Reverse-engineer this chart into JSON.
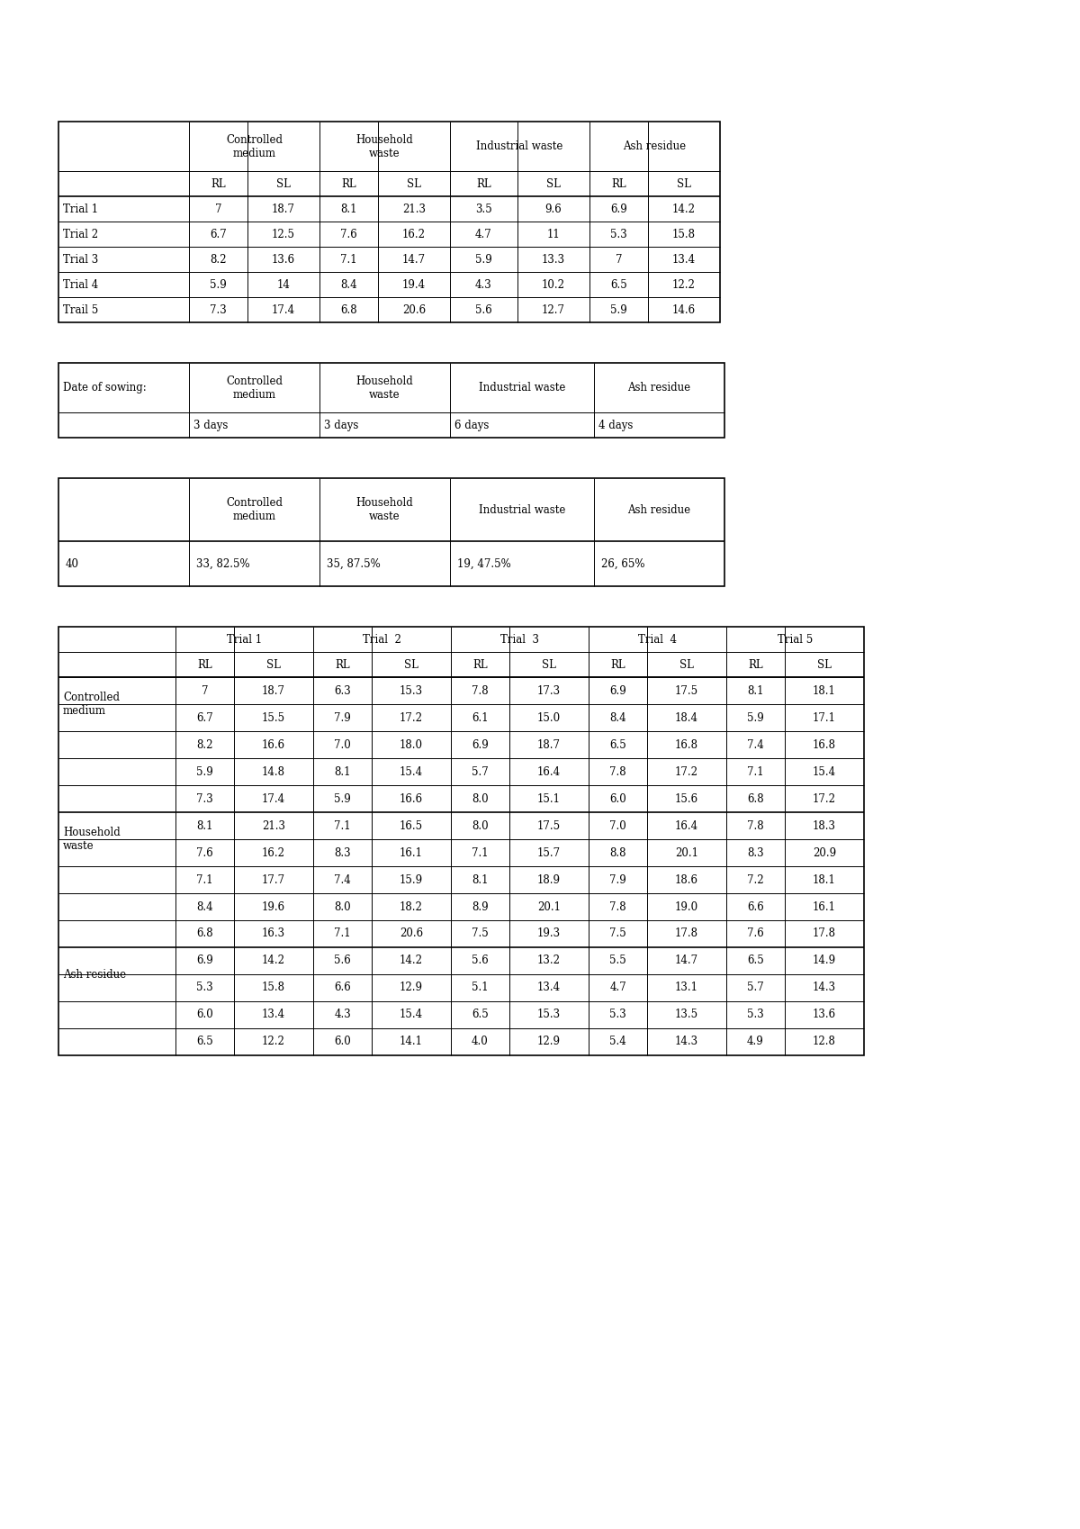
{
  "background_color": "#ffffff",
  "font_size": 8.5,
  "table1": {
    "rows": [
      [
        "Trial 1",
        "7",
        "18.7",
        "8.1",
        "21.3",
        "3.5",
        "9.6",
        "6.9",
        "14.2"
      ],
      [
        "Trial 2",
        "6.7",
        "12.5",
        "7.6",
        "16.2",
        "4.7",
        "11",
        "5.3",
        "15.8"
      ],
      [
        "Trial 3",
        "8.2",
        "13.6",
        "7.1",
        "14.7",
        "5.9",
        "13.3",
        "7",
        "13.4"
      ],
      [
        "Trial 4",
        "5.9",
        "14",
        "8.4",
        "19.4",
        "4.3",
        "10.2",
        "6.5",
        "12.2"
      ],
      [
        "Trail 5",
        "7.3",
        "17.4",
        "6.8",
        "20.6",
        "5.6",
        "12.7",
        "5.9",
        "14.6"
      ]
    ]
  },
  "table4": {
    "sections": [
      {
        "label": "Controlled\nmedium",
        "rows": [
          [
            "7",
            "18.7",
            "6.3",
            "15.3",
            "7.8",
            "17.3",
            "6.9",
            "17.5",
            "8.1",
            "18.1"
          ],
          [
            "6.7",
            "15.5",
            "7.9",
            "17.2",
            "6.1",
            "15.0",
            "8.4",
            "18.4",
            "5.9",
            "17.1"
          ],
          [
            "8.2",
            "16.6",
            "7.0",
            "18.0",
            "6.9",
            "18.7",
            "6.5",
            "16.8",
            "7.4",
            "16.8"
          ],
          [
            "5.9",
            "14.8",
            "8.1",
            "15.4",
            "5.7",
            "16.4",
            "7.8",
            "17.2",
            "7.1",
            "15.4"
          ],
          [
            "7.3",
            "17.4",
            "5.9",
            "16.6",
            "8.0",
            "15.1",
            "6.0",
            "15.6",
            "6.8",
            "17.2"
          ]
        ]
      },
      {
        "label": "Household\nwaste",
        "rows": [
          [
            "8.1",
            "21.3",
            "7.1",
            "16.5",
            "8.0",
            "17.5",
            "7.0",
            "16.4",
            "7.8",
            "18.3"
          ],
          [
            "7.6",
            "16.2",
            "8.3",
            "16.1",
            "7.1",
            "15.7",
            "8.8",
            "20.1",
            "8.3",
            "20.9"
          ],
          [
            "7.1",
            "17.7",
            "7.4",
            "15.9",
            "8.1",
            "18.9",
            "7.9",
            "18.6",
            "7.2",
            "18.1"
          ],
          [
            "8.4",
            "19.6",
            "8.0",
            "18.2",
            "8.9",
            "20.1",
            "7.8",
            "19.0",
            "6.6",
            "16.1"
          ],
          [
            "6.8",
            "16.3",
            "7.1",
            "20.6",
            "7.5",
            "19.3",
            "7.5",
            "17.8",
            "7.6",
            "17.8"
          ]
        ]
      },
      {
        "label": "Ash residue",
        "rows": [
          [
            "6.9",
            "14.2",
            "5.6",
            "14.2",
            "5.6",
            "13.2",
            "5.5",
            "14.7",
            "6.5",
            "14.9"
          ],
          [
            "5.3",
            "15.8",
            "6.6",
            "12.9",
            "5.1",
            "13.4",
            "4.7",
            "13.1",
            "5.7",
            "14.3"
          ],
          [
            "6.0",
            "13.4",
            "4.3",
            "15.4",
            "6.5",
            "15.3",
            "5.3",
            "13.5",
            "5.3",
            "13.6"
          ],
          [
            "6.5",
            "12.2",
            "6.0",
            "14.1",
            "4.0",
            "12.9",
            "5.4",
            "14.3",
            "4.9",
            "12.8"
          ]
        ]
      }
    ]
  }
}
